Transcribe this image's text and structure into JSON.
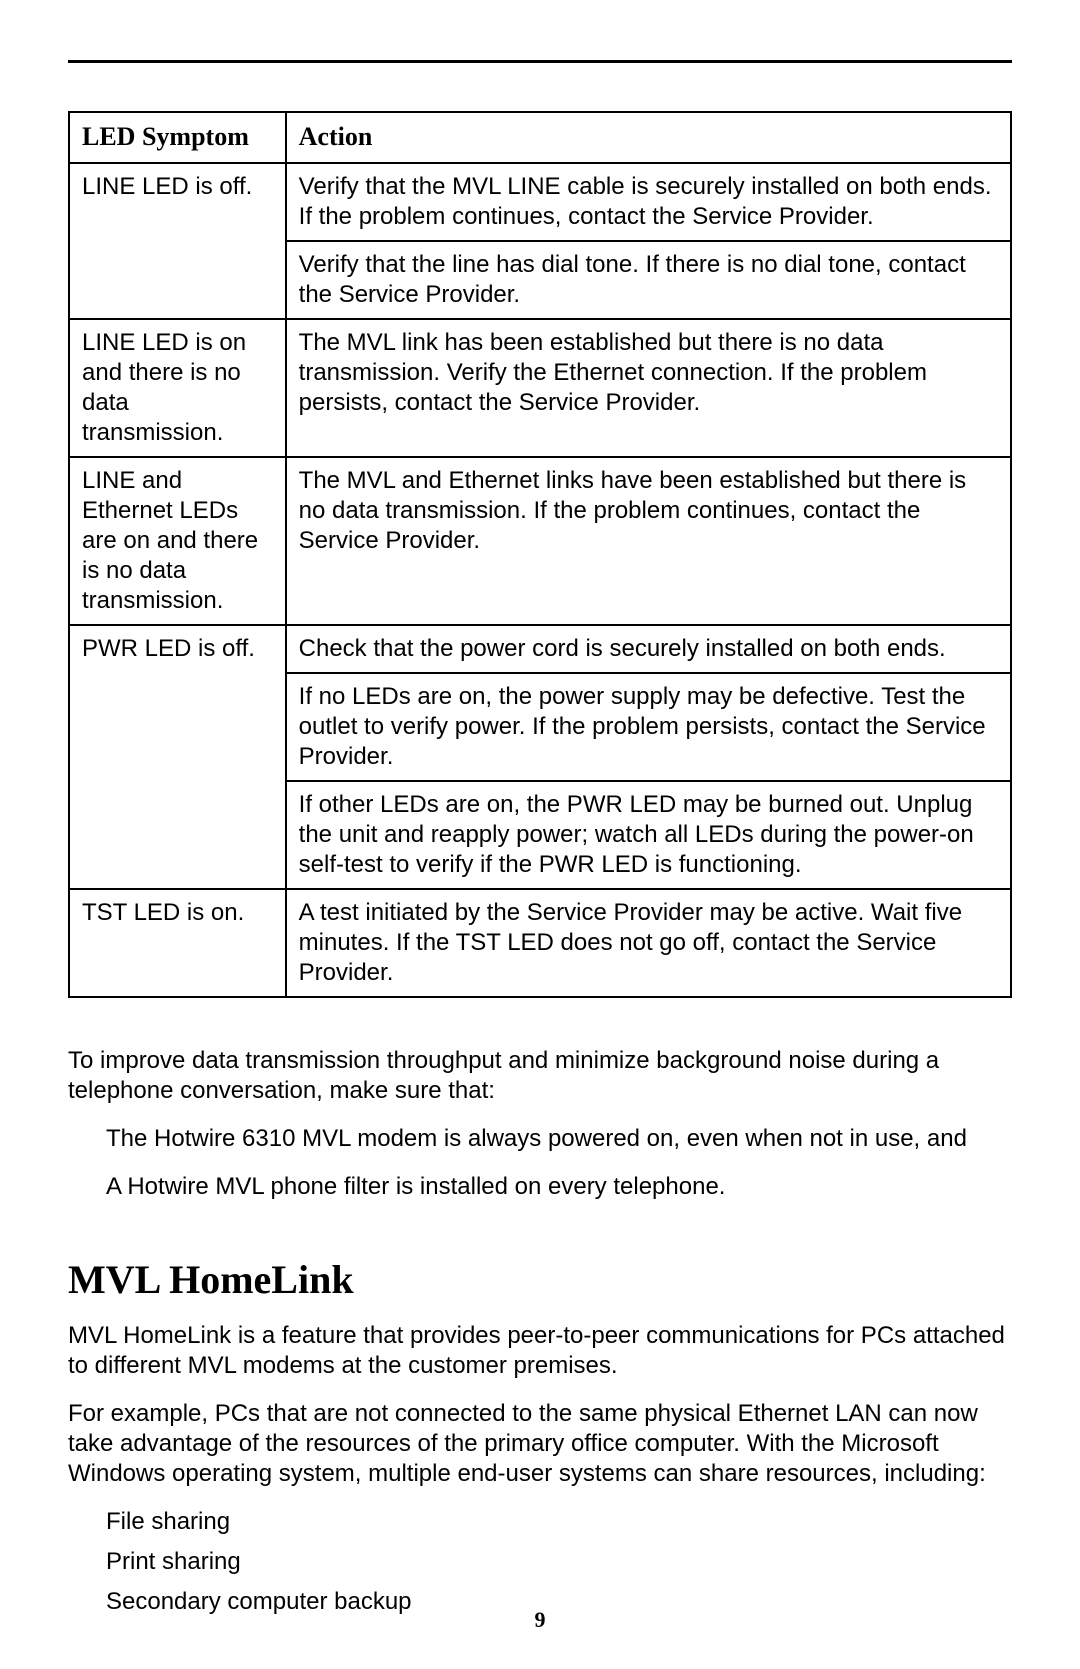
{
  "table": {
    "headers": {
      "symptom": "LED Symptom",
      "action": "Action"
    },
    "rows": [
      {
        "symptom": "LINE LED is off.",
        "rowspan": 2,
        "actions": [
          "Verify that the MVL LINE cable is securely installed on both ends. If the problem continues, contact the Service Provider.",
          "Verify that the line has dial tone. If there is no dial tone, contact the Service Provider."
        ]
      },
      {
        "symptom": "LINE LED is on and there is no data transmission.",
        "rowspan": 1,
        "actions": [
          "The MVL link has been established but there is no data transmission. Verify the Ethernet connection. If the problem persists, contact the Service Provider."
        ]
      },
      {
        "symptom": "LINE and Ethernet LEDs are on and there is no data transmission.",
        "rowspan": 1,
        "actions": [
          "The MVL and Ethernet links have been established but there is no data transmission. If the problem continues, contact the Service Provider."
        ]
      },
      {
        "symptom": "PWR LED is off.",
        "rowspan": 3,
        "actions": [
          "Check that the power cord is securely installed on both ends.",
          "If no LEDs are on, the power supply may be defective. Test the outlet to verify power. If the problem persists, contact the Service Provider.",
          "If other LEDs are on, the PWR LED may be burned out. Unplug the unit and reapply power; watch all LEDs during the power-on self-test to verify if the PWR LED is functioning."
        ]
      },
      {
        "symptom": "TST LED is on.",
        "rowspan": 1,
        "actions": [
          "A test initiated by the Service Provider may be active. Wait five minutes. If the TST LED does not go off, contact the Service Provider."
        ]
      }
    ]
  },
  "improve_intro": "To improve data transmission throughput and minimize background noise during a telephone conversation, make sure that:",
  "improve_items": [
    "The Hotwire 6310 MVL modem is always powered on, even when not in use, and",
    "A Hotwire MVL phone filter is installed on every telephone."
  ],
  "section_title": "MVL HomeLink",
  "homelink_paras": [
    "MVL HomeLink is a feature that provides peer-to-peer communications for PCs attached to different MVL modems at the customer premises.",
    "For example, PCs that are not connected to the same physical Ethernet LAN can now take advantage of the resources of the primary office computer. With the Microsoft Windows operating system, multiple end-user systems can share resources, including:"
  ],
  "resources": [
    "File sharing",
    "Print sharing",
    "Secondary computer backup"
  ],
  "page_number": "9",
  "colors": {
    "text": "#000000",
    "background": "#ffffff",
    "border": "#000000"
  },
  "fonts": {
    "body": {
      "family": "Arial",
      "size_pt": 18
    },
    "table_header": {
      "family": "Times New Roman",
      "weight": "bold",
      "size_pt": 19
    },
    "section_title": {
      "family": "Times New Roman",
      "weight": "bold",
      "size_pt": 30
    }
  }
}
